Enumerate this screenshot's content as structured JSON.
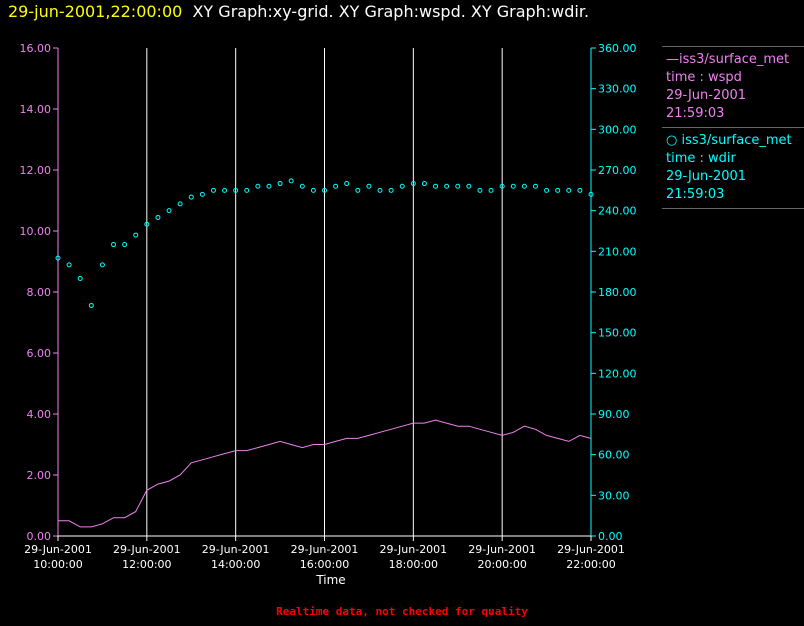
{
  "header": {
    "timestamp": "29-jun-2001,22:00:00",
    "title": "XY Graph:xy-grid.  XY Graph:wspd.  XY Graph:wdir."
  },
  "chart_data": {
    "type": "line",
    "xlabel": "Time",
    "x_ticks": [
      {
        "date": "29-Jun-2001",
        "time": "10:00:00",
        "hour": 10
      },
      {
        "date": "29-Jun-2001",
        "time": "12:00:00",
        "hour": 12
      },
      {
        "date": "29-Jun-2001",
        "time": "14:00:00",
        "hour": 14
      },
      {
        "date": "29-Jun-2001",
        "time": "16:00:00",
        "hour": 16
      },
      {
        "date": "29-Jun-2001",
        "time": "18:00:00",
        "hour": 18
      },
      {
        "date": "29-Jun-2001",
        "time": "20:00:00",
        "hour": 20
      },
      {
        "date": "29-Jun-2001",
        "time": "22:00:00",
        "hour": 22
      }
    ],
    "xlim": [
      10,
      22
    ],
    "grid": "vertical",
    "y_left": {
      "lim": [
        0,
        16
      ],
      "ticks": [
        "0.00",
        "2.00",
        "4.00",
        "6.00",
        "8.00",
        "10.00",
        "12.00",
        "14.00",
        "16.00"
      ],
      "color": "#ee82ee"
    },
    "y_right": {
      "lim": [
        0,
        360
      ],
      "ticks": [
        "0.00",
        "30.00",
        "60.00",
        "90.00",
        "120.00",
        "150.00",
        "180.00",
        "210.00",
        "240.00",
        "270.00",
        "300.00",
        "330.00",
        "360.00"
      ],
      "color": "#00ffff"
    },
    "series": [
      {
        "name": "iss3/surface_met",
        "style": "line",
        "axis": "left",
        "color": "#ee82ee",
        "x": [
          10.0,
          10.25,
          10.5,
          10.75,
          11.0,
          11.25,
          11.5,
          11.75,
          12.0,
          12.25,
          12.5,
          12.75,
          13.0,
          13.25,
          13.5,
          13.75,
          14.0,
          14.25,
          14.5,
          14.75,
          15.0,
          15.25,
          15.5,
          15.75,
          16.0,
          16.25,
          16.5,
          16.75,
          17.0,
          17.25,
          17.5,
          17.75,
          18.0,
          18.25,
          18.5,
          18.75,
          19.0,
          19.25,
          19.5,
          19.75,
          20.0,
          20.25,
          20.5,
          20.75,
          21.0,
          21.25,
          21.5,
          21.75,
          22.0
        ],
        "y": [
          0.5,
          0.5,
          0.3,
          0.3,
          0.4,
          0.6,
          0.6,
          0.8,
          1.5,
          1.7,
          1.8,
          2.0,
          2.4,
          2.5,
          2.6,
          2.7,
          2.8,
          2.8,
          2.9,
          3.0,
          3.1,
          3.0,
          2.9,
          3.0,
          3.0,
          3.1,
          3.2,
          3.2,
          3.3,
          3.4,
          3.5,
          3.6,
          3.7,
          3.7,
          3.8,
          3.7,
          3.6,
          3.6,
          3.5,
          3.4,
          3.3,
          3.4,
          3.6,
          3.5,
          3.3,
          3.2,
          3.1,
          3.3,
          3.2
        ],
        "legend": {
          "label": "iss3/surface_met",
          "field": "time : wspd",
          "date": "29-Jun-2001",
          "time": "21:59:03"
        }
      },
      {
        "name": "iss3/surface_met",
        "style": "points",
        "axis": "right",
        "color": "#00ffff",
        "x": [
          10.0,
          10.25,
          10.5,
          10.75,
          11.0,
          11.25,
          11.5,
          11.75,
          12.0,
          12.25,
          12.5,
          12.75,
          13.0,
          13.25,
          13.5,
          13.75,
          14.0,
          14.25,
          14.5,
          14.75,
          15.0,
          15.25,
          15.5,
          15.75,
          16.0,
          16.25,
          16.5,
          16.75,
          17.0,
          17.25,
          17.5,
          17.75,
          18.0,
          18.25,
          18.5,
          18.75,
          19.0,
          19.25,
          19.5,
          19.75,
          20.0,
          20.25,
          20.5,
          20.75,
          21.0,
          21.25,
          21.5,
          21.75,
          22.0
        ],
        "y": [
          205,
          200,
          190,
          170,
          200,
          215,
          215,
          222,
          230,
          235,
          240,
          245,
          250,
          252,
          255,
          255,
          255,
          255,
          258,
          258,
          260,
          262,
          258,
          255,
          255,
          258,
          260,
          255,
          258,
          255,
          255,
          258,
          260,
          260,
          258,
          258,
          258,
          258,
          255,
          255,
          258,
          258,
          258,
          258,
          255,
          255,
          255,
          255,
          252
        ],
        "legend": {
          "label": "iss3/surface_met",
          "field": "time : wdir",
          "date": "29-Jun-2001",
          "time": "21:59:03"
        }
      }
    ]
  },
  "footer": {
    "note": "Realtime data, not checked for quality"
  }
}
